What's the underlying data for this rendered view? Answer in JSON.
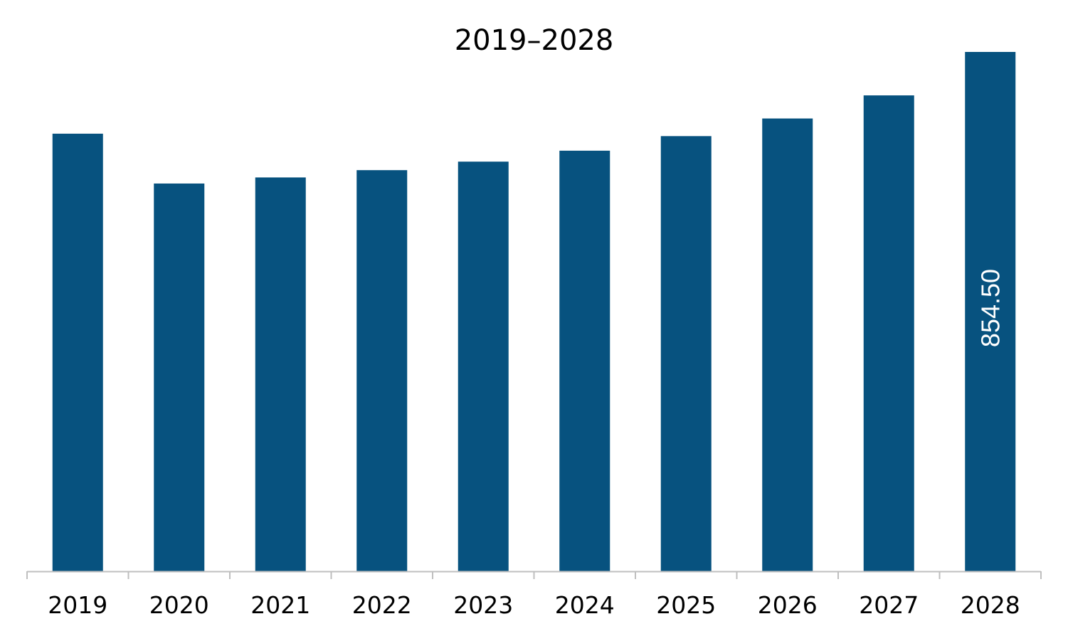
{
  "chart_data": {
    "type": "bar",
    "title": "2019–2028",
    "xlabel": "",
    "ylabel": "",
    "categories": [
      "2019",
      "2020",
      "2021",
      "2022",
      "2023",
      "2024",
      "2025",
      "2026",
      "2027",
      "2028"
    ],
    "values": [
      720,
      638,
      648,
      660,
      674,
      692,
      716,
      745,
      783,
      854.5
    ],
    "data_labels": [
      null,
      null,
      null,
      null,
      null,
      null,
      null,
      null,
      null,
      "854.50"
    ],
    "ylim": [
      0,
      854.5
    ],
    "grid": false,
    "legend": "none",
    "bar_color": "#07527f",
    "label_color": "#ffffff"
  }
}
